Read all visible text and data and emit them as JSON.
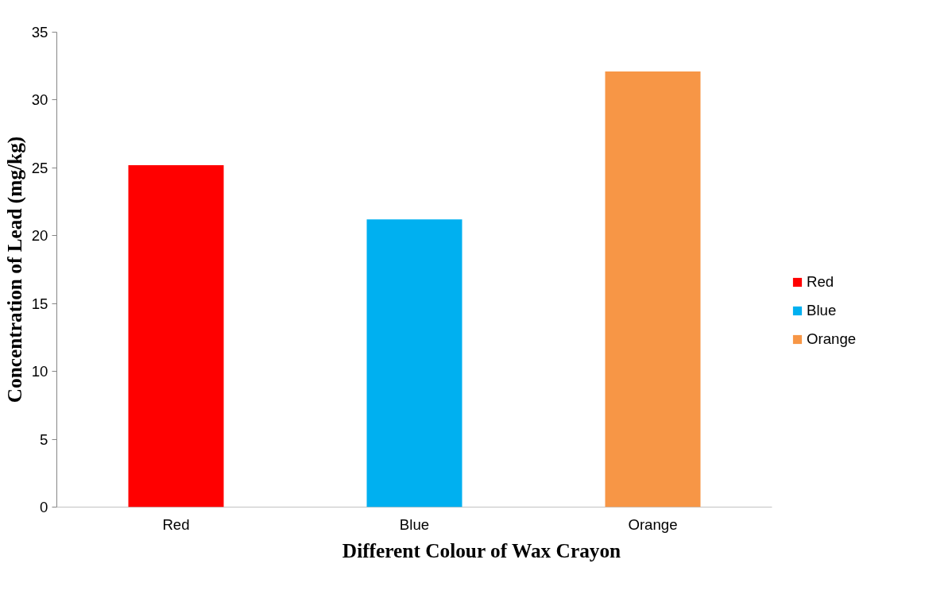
{
  "chart_data": {
    "type": "bar",
    "xlabel": "Different Colour of Wax Crayon",
    "ylabel": "Concentration of Lead (mg/kg)",
    "categories": [
      "Red",
      "Blue",
      "Orange"
    ],
    "series": [
      {
        "name": "Red",
        "color": "#ff0000",
        "values": [
          25.2,
          null,
          null
        ]
      },
      {
        "name": "Blue",
        "color": "#00b0f0",
        "values": [
          null,
          21.2,
          null
        ]
      },
      {
        "name": "Orange",
        "color": "#f79646",
        "values": [
          null,
          null,
          32.1
        ]
      }
    ],
    "ylim": [
      0,
      35
    ],
    "yticks": [
      0,
      5,
      10,
      15,
      20,
      25,
      30,
      35
    ],
    "grid": false,
    "legend": "right"
  }
}
